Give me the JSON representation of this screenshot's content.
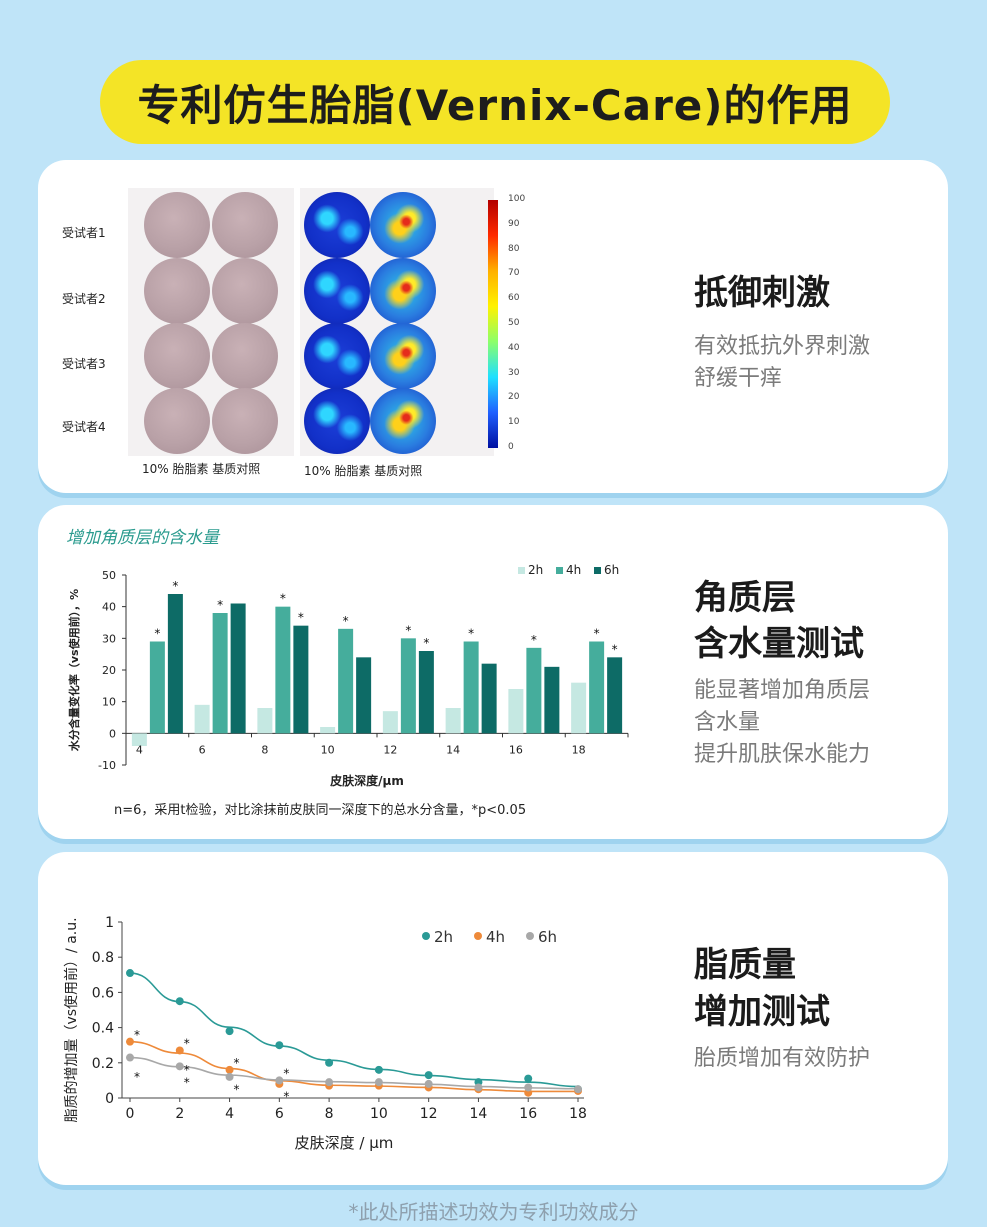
{
  "title": "专利仿生胎脂(Vernix-Care)的作用",
  "card1": {
    "subjects": [
      "受试者1",
      "受试者2",
      "受试者3",
      "受试者4"
    ],
    "colorbar_ticks": [
      "100",
      "90",
      "80",
      "70",
      "60",
      "50",
      "40",
      "30",
      "20",
      "10",
      "0"
    ],
    "caption_left": "10% 胎脂素  基质对照",
    "caption_right": "10% 胎脂素  基质对照",
    "side_title": "抵御刺激",
    "side_desc_1": "有效抵抗外界刺激",
    "side_desc_2": "舒缓干痒"
  },
  "card2": {
    "heading": "增加角质层的含水量",
    "note": "n=6，采用t检验，对比涂抹前皮肤同一深度下的总水分含量，*p<0.05",
    "side_title_1": "角质层",
    "side_title_2": "含水量测试",
    "side_desc_1": "能显著增加角质层",
    "side_desc_2": "含水量",
    "side_desc_3": "提升肌肤保水能力"
  },
  "card3": {
    "side_title_1": "脂质量",
    "side_title_2": "增加测试",
    "side_desc_1": "胎质增加有效防护"
  },
  "footer": "*此处所描述功效为专利功效成分",
  "chart_data": [
    {
      "type": "bar",
      "title": "增加角质层的含水量",
      "xlabel": "皮肤深度/μm",
      "ylabel": "水分含量变化率（vs使用前），%",
      "categories": [
        "4",
        "6",
        "8",
        "10",
        "12",
        "14",
        "16",
        "18"
      ],
      "ylim": [
        -10,
        50
      ],
      "yticks": [
        -10,
        0,
        10,
        20,
        30,
        40,
        50
      ],
      "legend_position": "top-right",
      "series": [
        {
          "name": "2h",
          "color": "#c5e8e2",
          "values": [
            -4,
            9,
            8,
            2,
            7,
            8,
            14,
            16
          ],
          "significant": [
            false,
            false,
            false,
            false,
            false,
            false,
            false,
            false
          ]
        },
        {
          "name": "4h",
          "color": "#45ad9c",
          "values": [
            29,
            38,
            40,
            33,
            30,
            29,
            27,
            29
          ],
          "significant": [
            true,
            true,
            true,
            true,
            true,
            true,
            true,
            true
          ]
        },
        {
          "name": "6h",
          "color": "#0d6b66",
          "values": [
            44,
            41,
            34,
            24,
            26,
            22,
            21,
            24
          ],
          "significant": [
            true,
            false,
            true,
            false,
            true,
            false,
            false,
            true
          ]
        }
      ]
    },
    {
      "type": "scatter",
      "xlabel": "皮肤深度 / μm",
      "ylabel": "脂质的增加量（vs使用前）/ a.u.",
      "xlim": [
        0,
        18
      ],
      "ylim": [
        0,
        1
      ],
      "xticks": [
        0,
        2,
        4,
        6,
        8,
        10,
        12,
        14,
        16,
        18
      ],
      "yticks": [
        "0",
        "0.2",
        "0.4",
        "0.6",
        "0.8",
        "1"
      ],
      "legend_position": "top-right",
      "series": [
        {
          "name": "2h",
          "color": "#2a9a96",
          "x": [
            0,
            2,
            4,
            6,
            8,
            10,
            12,
            14,
            16,
            18
          ],
          "y": [
            0.71,
            0.55,
            0.38,
            0.3,
            0.2,
            0.16,
            0.13,
            0.09,
            0.11,
            0.05
          ]
        },
        {
          "name": "4h",
          "color": "#ee8a3a",
          "x": [
            0,
            2,
            4,
            6,
            8,
            10,
            12,
            14,
            16,
            18
          ],
          "y": [
            0.32,
            0.27,
            0.16,
            0.08,
            0.07,
            0.07,
            0.06,
            0.05,
            0.03,
            0.04
          ]
        },
        {
          "name": "6h",
          "color": "#a8a8a8",
          "x": [
            0,
            2,
            4,
            6,
            8,
            10,
            12,
            14,
            16,
            18
          ],
          "y": [
            0.23,
            0.18,
            0.12,
            0.1,
            0.09,
            0.09,
            0.08,
            0.06,
            0.06,
            0.05
          ]
        }
      ],
      "significance_markers": [
        {
          "x": 0,
          "y": 0.37
        },
        {
          "x": 0,
          "y": 0.13
        },
        {
          "x": 2,
          "y": 0.32
        },
        {
          "x": 2,
          "y": 0.17
        },
        {
          "x": 2,
          "y": 0.1
        },
        {
          "x": 4,
          "y": 0.21
        },
        {
          "x": 4,
          "y": 0.06
        },
        {
          "x": 6,
          "y": 0.15
        },
        {
          "x": 6,
          "y": 0.02
        }
      ]
    }
  ]
}
